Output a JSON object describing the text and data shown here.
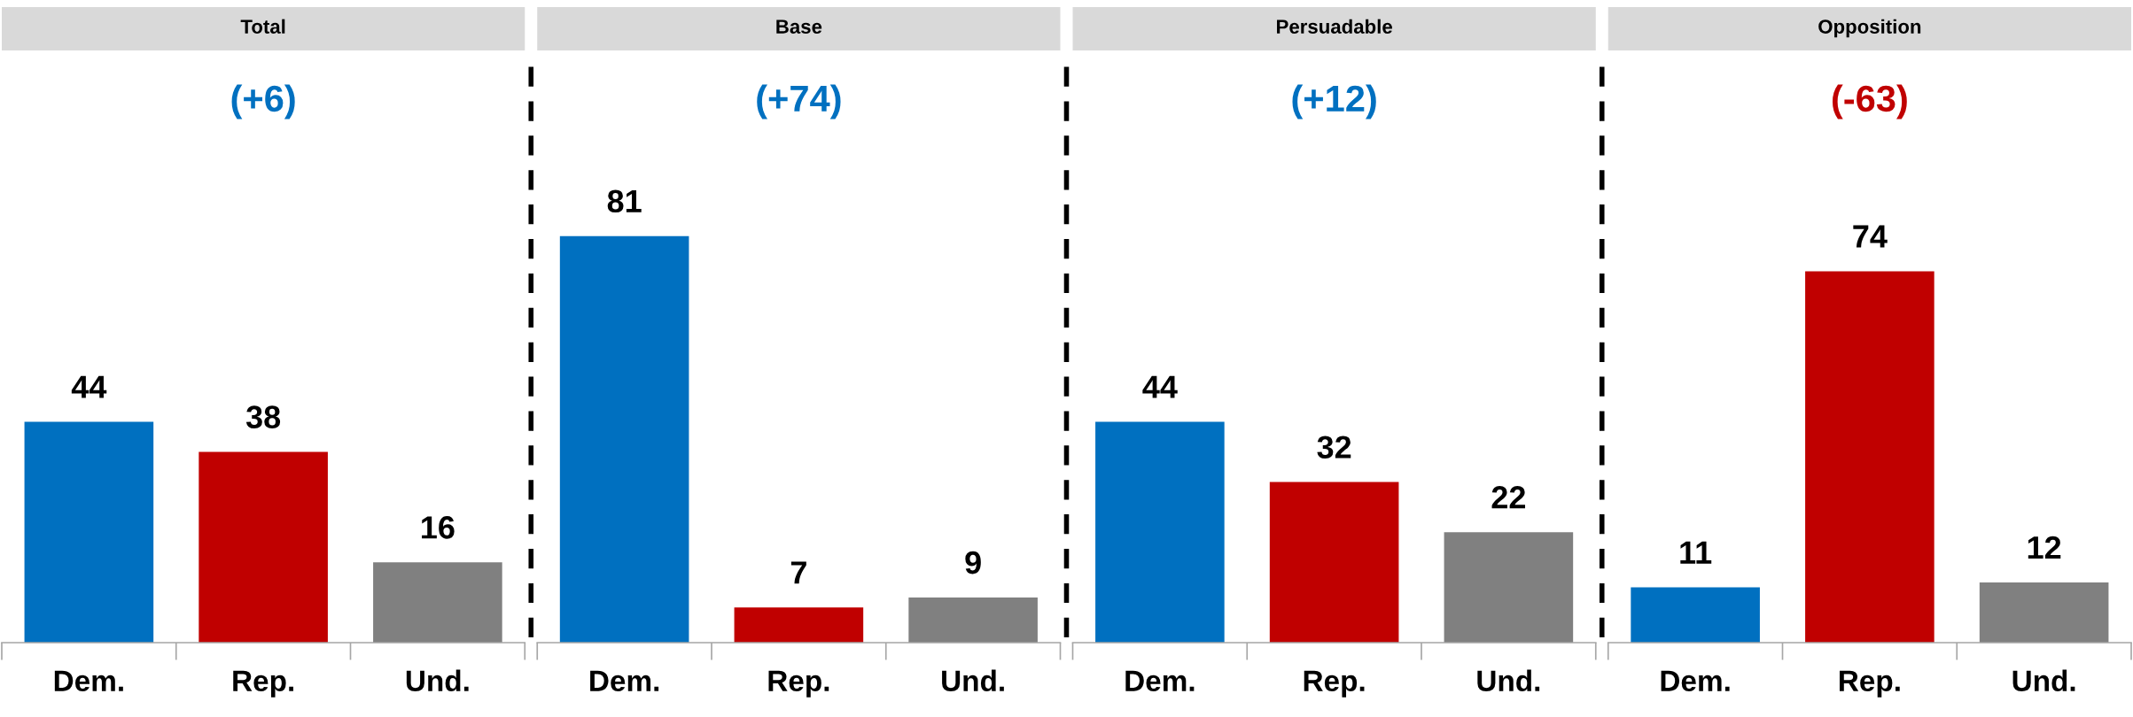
{
  "chart_data": [
    {
      "type": "bar",
      "title": "Total",
      "subtitle": "(+6)",
      "categories": [
        "Dem.",
        "Rep.",
        "Und."
      ],
      "values": [
        44,
        38,
        16
      ],
      "colors": [
        "#0070c0",
        "#c00000",
        "#808080"
      ],
      "data_labels": true
    },
    {
      "type": "bar",
      "title": "Base",
      "subtitle": "(+74)",
      "categories": [
        "Dem.",
        "Rep.",
        "Und."
      ],
      "values": [
        81,
        7,
        9
      ],
      "colors": [
        "#0070c0",
        "#c00000",
        "#808080"
      ],
      "data_labels": true
    },
    {
      "type": "bar",
      "title": "Persuadable",
      "subtitle": "(+12)",
      "categories": [
        "Dem.",
        "Rep.",
        "Und."
      ],
      "values": [
        44,
        32,
        22
      ],
      "colors": [
        "#0070c0",
        "#c00000",
        "#808080"
      ],
      "data_labels": true
    },
    {
      "type": "bar",
      "title": "Opposition",
      "subtitle": "(-63)",
      "categories": [
        "Dem.",
        "Rep.",
        "Und."
      ],
      "values": [
        11,
        74,
        12
      ],
      "colors": [
        "#0070c0",
        "#c00000",
        "#808080"
      ],
      "data_labels": true
    }
  ]
}
